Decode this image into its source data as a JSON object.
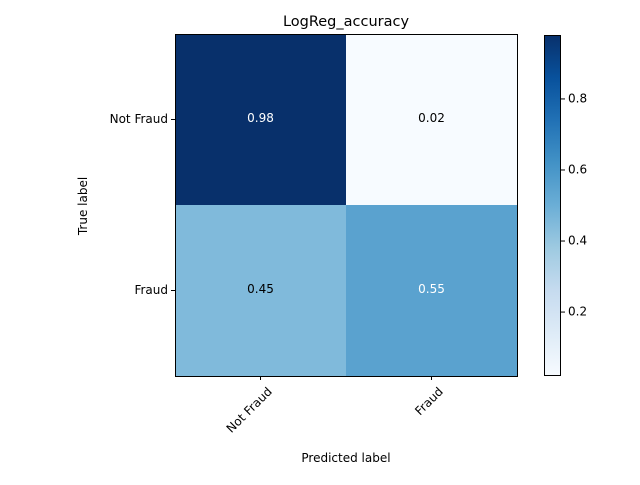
{
  "chart_data": {
    "type": "heatmap",
    "title": "LogReg_accuracy",
    "xlabel": "Predicted label",
    "ylabel": "True label",
    "x_categories": [
      "Not Fraud",
      "Fraud"
    ],
    "y_categories": [
      "Not Fraud",
      "Fraud"
    ],
    "values": [
      [
        0.98,
        0.02
      ],
      [
        0.45,
        0.55
      ]
    ],
    "value_labels": [
      [
        "0.98",
        "0.02"
      ],
      [
        "0.45",
        "0.55"
      ]
    ],
    "colormap": "Blues",
    "colorbar": {
      "range": [
        0.02,
        0.98
      ],
      "ticks": [
        0.2,
        0.4,
        0.6,
        0.8
      ],
      "tick_labels": [
        "0.2",
        "0.4",
        "0.6",
        "0.8"
      ]
    },
    "x_tick_rotation_deg": 45,
    "grid": false,
    "legend": "none"
  }
}
